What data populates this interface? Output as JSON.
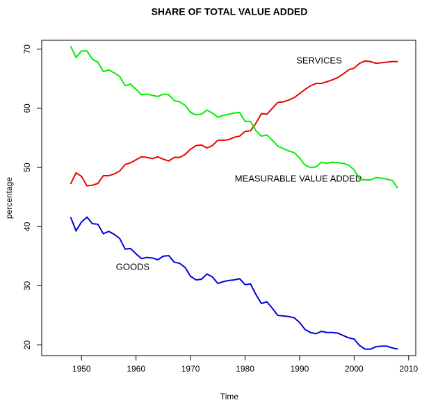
{
  "chart_data": {
    "type": "line",
    "title": "SHARE OF TOTAL VALUE ADDED",
    "x_label": "Time",
    "y_label": "percentage",
    "x": [
      1948,
      1949,
      1950,
      1951,
      1952,
      1953,
      1954,
      1955,
      1956,
      1957,
      1958,
      1959,
      1960,
      1961,
      1962,
      1963,
      1964,
      1965,
      1966,
      1967,
      1968,
      1969,
      1970,
      1971,
      1972,
      1973,
      1974,
      1975,
      1976,
      1977,
      1978,
      1979,
      1980,
      1981,
      1982,
      1983,
      1984,
      1985,
      1986,
      1987,
      1988,
      1989,
      1990,
      1991,
      1992,
      1993,
      1994,
      1995,
      1996,
      1997,
      1998,
      1999,
      2000,
      2001,
      2002,
      2003,
      2004,
      2005,
      2006,
      2007,
      2008
    ],
    "series": [
      {
        "name": "GOODS",
        "color": "#0000dd",
        "values": [
          41.6,
          39.3,
          40.8,
          41.6,
          40.5,
          40.4,
          38.8,
          39.2,
          38.7,
          38.0,
          36.2,
          36.3,
          35.4,
          34.6,
          34.8,
          34.7,
          34.4,
          35.0,
          35.1,
          34.0,
          33.8,
          33.1,
          31.6,
          31.0,
          31.1,
          32.0,
          31.5,
          30.4,
          30.7,
          30.9,
          31.0,
          31.2,
          30.2,
          30.3,
          28.5,
          27.0,
          27.3,
          26.2,
          25.0,
          24.9,
          24.8,
          24.6,
          23.8,
          22.6,
          22.1,
          21.9,
          22.3,
          22.1,
          22.1,
          22.0,
          21.6,
          21.2,
          21.0,
          19.9,
          19.3,
          19.3,
          19.7,
          19.8,
          19.8,
          19.5,
          19.3
        ]
      },
      {
        "name": "SERVICES",
        "color": "#ee0000",
        "values": [
          47.2,
          49.1,
          48.5,
          46.9,
          47.0,
          47.3,
          48.6,
          48.6,
          48.9,
          49.4,
          50.5,
          50.8,
          51.3,
          51.8,
          51.7,
          51.5,
          51.8,
          51.4,
          51.1,
          51.7,
          51.7,
          52.2,
          53.1,
          53.7,
          53.8,
          53.3,
          53.7,
          54.6,
          54.6,
          54.7,
          55.1,
          55.3,
          56.1,
          56.2,
          57.5,
          59.1,
          59.0,
          60.0,
          61.0,
          61.1,
          61.4,
          61.8,
          62.5,
          63.2,
          63.8,
          64.2,
          64.2,
          64.5,
          64.8,
          65.2,
          65.8,
          66.5,
          66.8,
          67.6,
          68.0,
          67.9,
          67.6,
          67.7,
          67.8,
          67.9,
          67.9
        ]
      },
      {
        "name": "MEASURABLE VALUE ADDED",
        "color": "#00ee00",
        "values": [
          70.5,
          68.6,
          69.7,
          69.7,
          68.3,
          67.8,
          66.2,
          66.5,
          66.0,
          65.4,
          63.8,
          64.1,
          63.2,
          62.3,
          62.4,
          62.2,
          62.0,
          62.4,
          62.3,
          61.3,
          61.1,
          60.5,
          59.3,
          58.9,
          59.0,
          59.7,
          59.2,
          58.5,
          58.8,
          59.0,
          59.2,
          59.3,
          57.8,
          57.8,
          56.2,
          55.3,
          55.5,
          54.6,
          53.6,
          53.2,
          52.8,
          52.5,
          51.6,
          50.4,
          50.0,
          50.1,
          50.9,
          50.7,
          50.9,
          50.8,
          50.7,
          50.4,
          49.6,
          48.0,
          47.9,
          47.9,
          48.3,
          48.2,
          48.0,
          47.8,
          46.5
        ]
      }
    ],
    "xlim": [
      1942.7,
      2011.3
    ],
    "xticks": [
      1950,
      1960,
      1970,
      1980,
      1990,
      2000,
      2010
    ],
    "ylim": [
      18.2,
      71.5
    ],
    "yticks": [
      20,
      30,
      40,
      50,
      60,
      70
    ]
  }
}
